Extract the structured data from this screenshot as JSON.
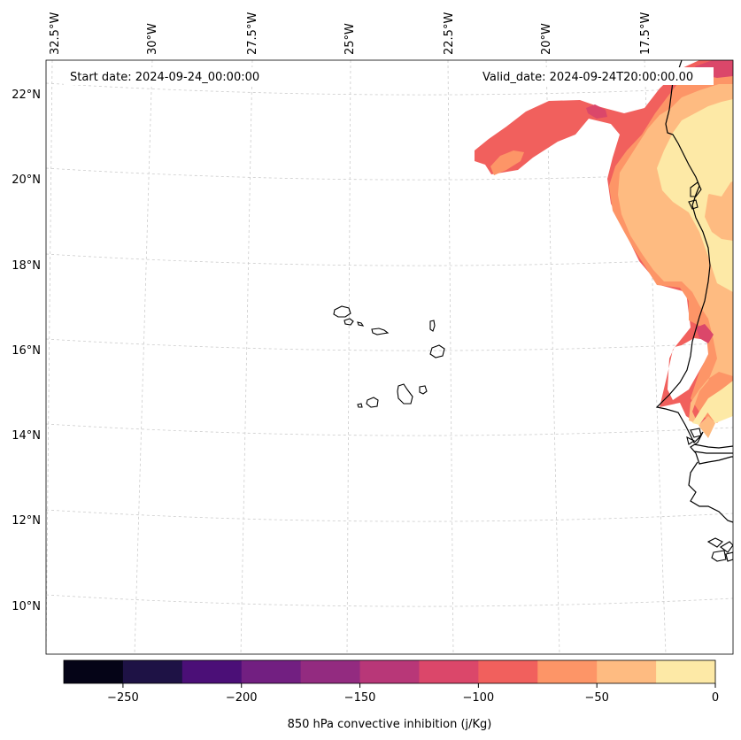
{
  "map": {
    "start_date": "Start date: 2024-09-24_00:00:00",
    "valid_date": "Valid_date: 2024-09-24T20:00:00.00",
    "lon_labels": [
      "32.5°W",
      "30°W",
      "27.5°W",
      "25°W",
      "22.5°W",
      "20°W",
      "17.5°W"
    ],
    "lat_labels": [
      "22°N",
      "20°N",
      "18°N",
      "16°N",
      "14°N",
      "12°N",
      "10°N"
    ],
    "coastline_color": "#000000",
    "gridline_color": "#cccccc"
  },
  "colorbar": {
    "label": "850 hPa convective inhibition (j/Kg)",
    "tick_labels": [
      "−250",
      "−200",
      "−150",
      "−100",
      "−50",
      "0"
    ],
    "range": [
      -275,
      0
    ],
    "bins": [
      {
        "from": -275,
        "to": -250,
        "color": "#050417"
      },
      {
        "from": -250,
        "to": -225,
        "color": "#1e1245"
      },
      {
        "from": -225,
        "to": -200,
        "color": "#4b0f77"
      },
      {
        "from": -200,
        "to": -175,
        "color": "#721f81"
      },
      {
        "from": -175,
        "to": -150,
        "color": "#932b80"
      },
      {
        "from": -150,
        "to": -125,
        "color": "#b83778"
      },
      {
        "from": -125,
        "to": -100,
        "color": "#db476a"
      },
      {
        "from": -100,
        "to": -75,
        "color": "#f1605d"
      },
      {
        "from": -75,
        "to": -50,
        "color": "#fd9567"
      },
      {
        "from": -50,
        "to": -25,
        "color": "#febb81"
      },
      {
        "from": -25,
        "to": 0,
        "color": "#fde9a6"
      }
    ]
  }
}
